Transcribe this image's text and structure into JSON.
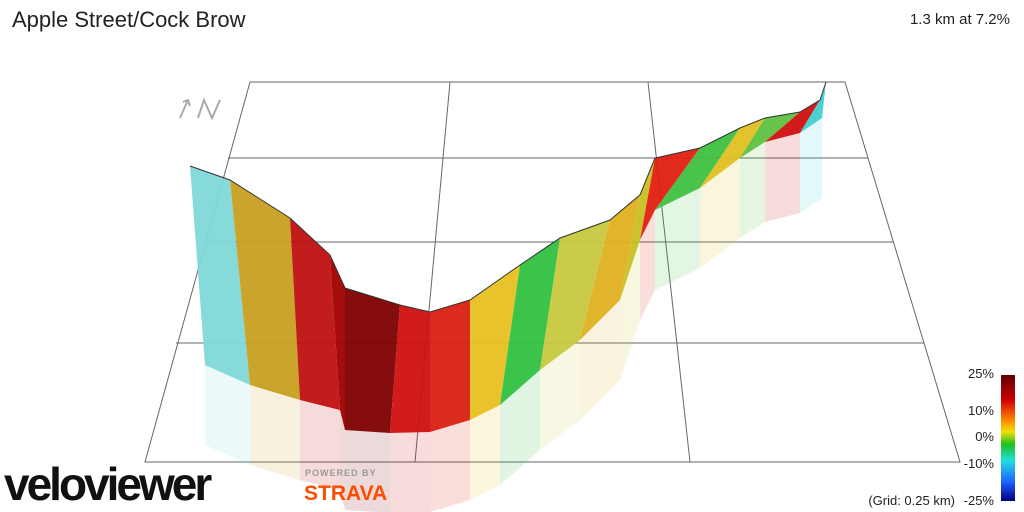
{
  "header": {
    "title": "Apple Street/Cock Brow",
    "summary": "1.3 km at 7.2%"
  },
  "legend": {
    "labels": [
      "25%",
      "10%",
      "0%",
      "-10%",
      "-25%"
    ],
    "grid_note": "(Grid: 0.25 km)"
  },
  "branding": {
    "logo": "veloviewer",
    "powered_by": "POWERED BY",
    "partner": "STRAVA"
  }
}
